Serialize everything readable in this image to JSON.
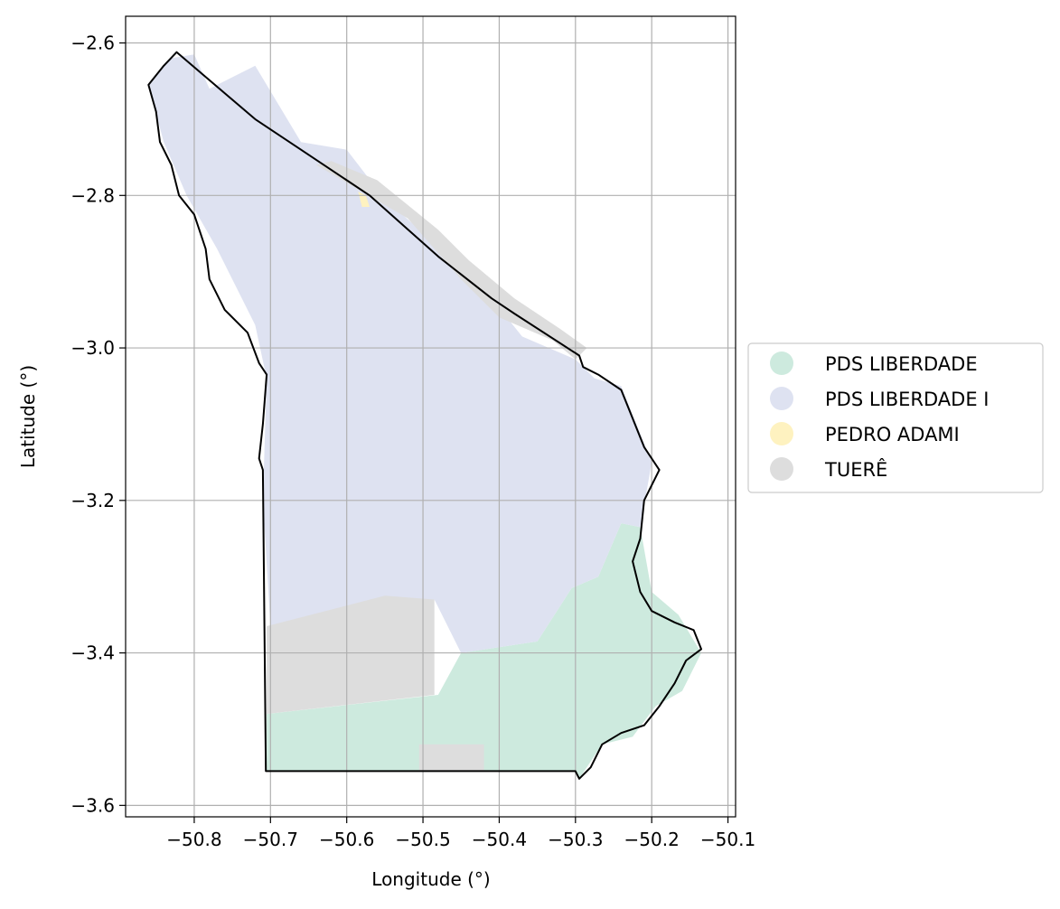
{
  "chart_data": {
    "type": "map",
    "xlabel": "Longitude (°)",
    "ylabel": "Latitude (°)",
    "xlim": [
      -50.89,
      -50.09
    ],
    "ylim": [
      -3.615,
      -2.565
    ],
    "grid": true,
    "x_ticks": [
      {
        "value": -50.8,
        "label": "−50.8"
      },
      {
        "value": -50.7,
        "label": "−50.7"
      },
      {
        "value": -50.6,
        "label": "−50.6"
      },
      {
        "value": -50.5,
        "label": "−50.5"
      },
      {
        "value": -50.4,
        "label": "−50.4"
      },
      {
        "value": -50.3,
        "label": "−50.3"
      },
      {
        "value": -50.2,
        "label": "−50.2"
      },
      {
        "value": -50.1,
        "label": "−50.1"
      }
    ],
    "y_ticks": [
      {
        "value": -2.6,
        "label": "−2.6"
      },
      {
        "value": -2.8,
        "label": "−2.8"
      },
      {
        "value": -3.0,
        "label": "−3.0"
      },
      {
        "value": -3.2,
        "label": "−3.2"
      },
      {
        "value": -3.4,
        "label": "−3.4"
      },
      {
        "value": -3.6,
        "label": "−3.6"
      }
    ],
    "legend_position": "right",
    "regions": [
      {
        "name": "PDS LIBERDADE",
        "color": "#cdeade",
        "polygon": [
          [
            -50.705,
            -3.48
          ],
          [
            -50.48,
            -3.455
          ],
          [
            -50.45,
            -3.4
          ],
          [
            -50.35,
            -3.385
          ],
          [
            -50.305,
            -3.315
          ],
          [
            -50.27,
            -3.3
          ],
          [
            -50.24,
            -3.23
          ],
          [
            -50.215,
            -3.235
          ],
          [
            -50.2,
            -3.32
          ],
          [
            -50.165,
            -3.35
          ],
          [
            -50.135,
            -3.4
          ],
          [
            -50.16,
            -3.45
          ],
          [
            -50.195,
            -3.47
          ],
          [
            -50.225,
            -3.51
          ],
          [
            -50.265,
            -3.52
          ],
          [
            -50.295,
            -3.565
          ],
          [
            -50.3,
            -3.555
          ],
          [
            -50.705,
            -3.555
          ]
        ]
      },
      {
        "name": "PDS LIBERDADE I",
        "color": "#dee2f1",
        "polygon": [
          [
            -50.83,
            -2.62
          ],
          [
            -50.86,
            -2.655
          ],
          [
            -50.84,
            -2.73
          ],
          [
            -50.81,
            -2.8
          ],
          [
            -50.77,
            -2.87
          ],
          [
            -50.72,
            -2.97
          ],
          [
            -50.705,
            -3.04
          ],
          [
            -50.71,
            -3.2
          ],
          [
            -50.7,
            -3.365
          ],
          [
            -50.55,
            -3.33
          ],
          [
            -50.485,
            -3.33
          ],
          [
            -50.45,
            -3.4
          ],
          [
            -50.35,
            -3.385
          ],
          [
            -50.305,
            -3.315
          ],
          [
            -50.27,
            -3.3
          ],
          [
            -50.24,
            -3.23
          ],
          [
            -50.215,
            -3.235
          ],
          [
            -50.2,
            -3.15
          ],
          [
            -50.24,
            -3.05
          ],
          [
            -50.275,
            -3.04
          ],
          [
            -50.3,
            -3.015
          ],
          [
            -50.37,
            -2.985
          ],
          [
            -50.41,
            -2.935
          ],
          [
            -50.47,
            -2.875
          ],
          [
            -50.55,
            -2.805
          ],
          [
            -50.6,
            -2.74
          ],
          [
            -50.66,
            -2.73
          ],
          [
            -50.72,
            -2.63
          ],
          [
            -50.78,
            -2.66
          ],
          [
            -50.8,
            -2.615
          ]
        ]
      },
      {
        "name": "PEDRO ADAMI",
        "color": "#fef2c0",
        "polygon": [
          [
            -50.585,
            -2.795
          ],
          [
            -50.575,
            -2.8
          ],
          [
            -50.57,
            -2.815
          ],
          [
            -50.58,
            -2.815
          ]
        ]
      },
      {
        "name": "TUERÊ",
        "color": "#dddddd",
        "polygon": [
          [
            -50.64,
            -2.76
          ],
          [
            -50.52,
            -2.83
          ],
          [
            -50.45,
            -2.91
          ],
          [
            -50.4,
            -2.96
          ],
          [
            -50.33,
            -2.99
          ],
          [
            -50.3,
            -3.015
          ],
          [
            -50.285,
            -3.0
          ],
          [
            -50.32,
            -2.975
          ],
          [
            -50.38,
            -2.935
          ],
          [
            -50.44,
            -2.885
          ],
          [
            -50.48,
            -2.845
          ],
          [
            -50.56,
            -2.78
          ],
          [
            -50.62,
            -2.755
          ]
        ]
      },
      {
        "name": "TUERÊ",
        "color": "#dddddd",
        "polygon": [
          [
            -50.705,
            -3.365
          ],
          [
            -50.55,
            -3.325
          ],
          [
            -50.485,
            -3.33
          ],
          [
            -50.485,
            -3.455
          ],
          [
            -50.705,
            -3.48
          ]
        ]
      },
      {
        "name": "TUERÊ",
        "color": "#dddddd",
        "polygon": [
          [
            -50.505,
            -3.52
          ],
          [
            -50.42,
            -3.52
          ],
          [
            -50.42,
            -3.555
          ],
          [
            -50.505,
            -3.555
          ]
        ]
      }
    ],
    "boundary": [
      [
        -50.823,
        -2.612
      ],
      [
        -50.84,
        -2.63
      ],
      [
        -50.86,
        -2.655
      ],
      [
        -50.85,
        -2.69
      ],
      [
        -50.845,
        -2.73
      ],
      [
        -50.83,
        -2.76
      ],
      [
        -50.82,
        -2.8
      ],
      [
        -50.8,
        -2.825
      ],
      [
        -50.785,
        -2.87
      ],
      [
        -50.78,
        -2.91
      ],
      [
        -50.76,
        -2.95
      ],
      [
        -50.73,
        -2.98
      ],
      [
        -50.715,
        -3.02
      ],
      [
        -50.705,
        -3.035
      ],
      [
        -50.71,
        -3.1
      ],
      [
        -50.715,
        -3.145
      ],
      [
        -50.71,
        -3.16
      ],
      [
        -50.706,
        -3.555
      ],
      [
        -50.3,
        -3.555
      ],
      [
        -50.295,
        -3.565
      ],
      [
        -50.28,
        -3.55
      ],
      [
        -50.265,
        -3.52
      ],
      [
        -50.24,
        -3.505
      ],
      [
        -50.21,
        -3.495
      ],
      [
        -50.19,
        -3.47
      ],
      [
        -50.17,
        -3.44
      ],
      [
        -50.155,
        -3.41
      ],
      [
        -50.135,
        -3.395
      ],
      [
        -50.145,
        -3.37
      ],
      [
        -50.17,
        -3.36
      ],
      [
        -50.2,
        -3.345
      ],
      [
        -50.215,
        -3.32
      ],
      [
        -50.225,
        -3.28
      ],
      [
        -50.215,
        -3.25
      ],
      [
        -50.21,
        -3.2
      ],
      [
        -50.19,
        -3.16
      ],
      [
        -50.21,
        -3.13
      ],
      [
        -50.23,
        -3.08
      ],
      [
        -50.24,
        -3.055
      ],
      [
        -50.27,
        -3.035
      ],
      [
        -50.29,
        -3.025
      ],
      [
        -50.295,
        -3.01
      ],
      [
        -50.38,
        -2.955
      ],
      [
        -50.41,
        -2.935
      ],
      [
        -50.48,
        -2.88
      ],
      [
        -50.57,
        -2.8
      ],
      [
        -50.66,
        -2.74
      ],
      [
        -50.72,
        -2.7
      ],
      [
        -50.823,
        -2.612
      ]
    ],
    "legend": [
      {
        "label": "PDS LIBERDADE",
        "color": "#cdeade"
      },
      {
        "label": "PDS LIBERDADE I",
        "color": "#dee2f1"
      },
      {
        "label": "PEDRO ADAMI",
        "color": "#fef2c0"
      },
      {
        "label": "TUERÊ",
        "color": "#dddddd"
      }
    ]
  }
}
